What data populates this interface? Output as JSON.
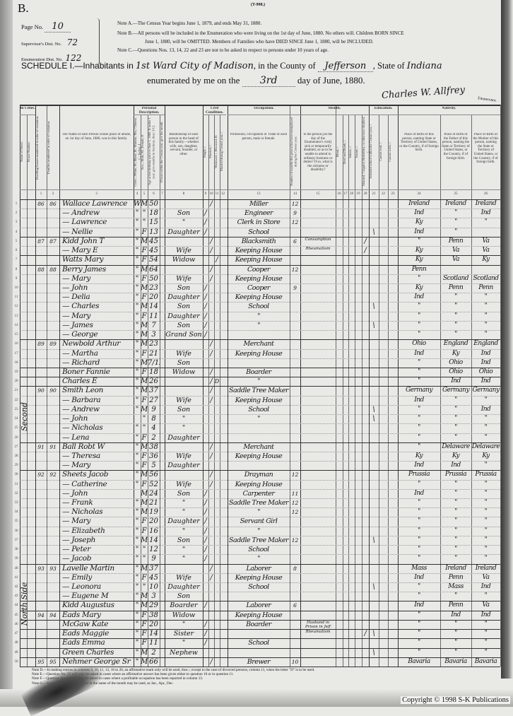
{
  "header": {
    "form_letter": "B.",
    "form_code": "(T-998.)",
    "page_label": "Page No.",
    "page_no": "10",
    "supervisor_label": "Supervisor's Dist. No.",
    "supervisor_no": "72",
    "enumeration_label": "Enumeration Dist. No.",
    "enumeration_no": "122",
    "note_a": "Note A.—The Census Year begins June 1, 1879, and ends May 31, 1880.",
    "note_b1": "Note B.—All persons will be included in the Enumeration who were living on the 1st day of June, 1880. No others will. Children BORN SINCE",
    "note_b2": "June 1, 1880, will be OMITTED. Members of Families who have DIED SINCE June 1, 1880, will be INCLUDED.",
    "note_c": "Note C.—Questions Nos. 13, 14, 22 and 23 are not to be asked in respect to persons under 10 years of age.",
    "schedule_label": "SCHEDULE I.—Inhabitants in",
    "place": "1st Ward City of Madison",
    "county_label": ", in the County of",
    "county": "Jefferson",
    "state_label": ", State of",
    "state": "Indiana",
    "enumerated_label": "enumerated by me on the",
    "day": "3rd",
    "day_suffix": "day of June, 1880.",
    "enumerator_signature": "Charles W. Allfrey",
    "enumerator_label": "Enumerator."
  },
  "columns": {
    "in_cities": "In Cities.",
    "street": "Name of Street.",
    "house": "House Number.",
    "dwelling": "Dwelling houses numbered in order of visitation.",
    "family": "Families numbered in order of visitation.",
    "name": "The Name of each Person whose place of abode, on 1st day of June, 1880, was in this family.",
    "personal": "Personal Description.",
    "color": "Color—White, W.; Black, B.; Mulatto, Mu.; Chinese, C.; Indian, I.",
    "sex": "Sex—Male, M.; Female, F.",
    "age": "Age at last birthday prior to June 1, 1880. If under 1 year, give months in fractions, thus: 3/12.",
    "month": "If born within the Census year, give the month.",
    "relationship": "Relationship of each person to the head of this family—whether wife, son, daughter, servant, boarder, or other.",
    "civil": "Civil Condition.",
    "single": "Single, /.",
    "married": "Married, /.",
    "widowed": "Widowed, /. Divorced, D.",
    "married_year": "Married during Census year, /.",
    "occupation_group": "Occupation.",
    "occupation": "Profession, Occupation or Trade of each person, male or female.",
    "unemployed": "Number of months this person has been unemployed during the Census year.",
    "health_group": "Health.",
    "sickness": "Is the person [on the day of the Enumerator's visit] sick or temporarily disabled, so as to be unable to attend to ordinary business or duties? If so, what is the sickness or disability?",
    "blind": "Blind, /.",
    "deaf": "Deaf and Dumb, /.",
    "idiotic": "Idiotic, /.",
    "insane": "Insane, /.",
    "maimed": "Maimed, Crippled, Bedridden, or otherwise disabled, /.",
    "education_group": "Education.",
    "school": "Attended school within the Census year, /.",
    "cannot_read": "Cannot read, /.",
    "cannot_write": "Cannot write, /.",
    "nativity_group": "Nativity.",
    "birthplace": "Place of Birth of this person, naming State or Territory of United States, or the Country, if of foreign birth.",
    "father_birth": "Place of Birth of the Father of this person, naming the State or Territory of United States, or the Country, if of foreign birth.",
    "mother_birth": "Place of Birth of the Mother of this person, naming the State or Territory of United States, or the Country, if of foreign birth.",
    "numbers": [
      "1",
      "2",
      "3",
      "4",
      "5",
      "6",
      "7",
      "8",
      "9",
      "10",
      "11",
      "12",
      "13",
      "14",
      "15",
      "16",
      "17",
      "18",
      "19",
      "20",
      "21",
      "22",
      "23",
      "24",
      "25",
      "26"
    ]
  },
  "street_annotations": [
    "Second",
    "North Side"
  ],
  "rows": [
    [
      "86",
      "86",
      "Wallace Lawrence",
      "W",
      "M",
      "50",
      "",
      "10",
      "Miller",
      "12",
      "",
      "",
      "",
      "Ireland",
      "Ireland",
      "Ireland"
    ],
    [
      "",
      "",
      "— Andrew",
      "\"",
      "\"",
      "18",
      "Son",
      "9",
      "Engineer",
      "9",
      "",
      "",
      "",
      "Ind",
      "\"",
      "Ind"
    ],
    [
      "",
      "",
      "— Lawrence",
      "\"",
      "\"",
      "15",
      "\"",
      "9",
      "Clerk in Store",
      "12",
      "",
      "",
      "",
      "Ky",
      "\"",
      "\""
    ],
    [
      "",
      "",
      "— Nellie",
      "\"",
      "F",
      "13",
      "Daughter",
      "9",
      "School",
      "",
      "",
      "",
      "\\",
      "Ind",
      "\"",
      ""
    ],
    [
      "87",
      "87",
      "Kidd John T",
      "\"",
      "M",
      "45",
      "",
      "10",
      "Blacksmith",
      "6",
      "Consumption",
      "/",
      "",
      "\"",
      "Penn",
      "Va"
    ],
    [
      "",
      "",
      "— Mary E",
      "\"",
      "F",
      "45",
      "Wife",
      "10",
      "Keeping House",
      "",
      "Rheumatism",
      "/",
      "",
      "Ky",
      "Va",
      "Va"
    ],
    [
      "",
      "",
      "Watts Mary",
      "\"",
      "F",
      "54",
      "Widow",
      "11",
      "Keeping House",
      "",
      "",
      "",
      "",
      "Ky",
      "Va",
      "Ky"
    ],
    [
      "88",
      "88",
      "Berry James",
      "\"",
      "M",
      "64",
      "",
      "10",
      "Cooper",
      "12",
      "",
      "",
      "",
      "Penn",
      "",
      ""
    ],
    [
      "",
      "",
      "— Mary",
      "\"",
      "F",
      "50",
      "Wife",
      "10",
      "Keeping House",
      "",
      "",
      "",
      "",
      "\"",
      "Scotland",
      "Scotland"
    ],
    [
      "",
      "",
      "— John",
      "\"",
      "M",
      "23",
      "Son",
      "9",
      "Cooper",
      "9",
      "",
      "",
      "",
      "Ky",
      "Penn",
      "Penn"
    ],
    [
      "",
      "",
      "— Delia",
      "\"",
      "F",
      "20",
      "Daughter",
      "9",
      "Keeping House",
      "",
      "",
      "",
      "",
      "Ind",
      "\"",
      "\""
    ],
    [
      "",
      "",
      "— Charles",
      "\"",
      "M",
      "14",
      "Son",
      "9",
      "School",
      "",
      "",
      "",
      "\\",
      "\"",
      "\"",
      "\""
    ],
    [
      "",
      "",
      "— Mary",
      "\"",
      "F",
      "11",
      "Daughter",
      "9",
      "\"",
      "",
      "",
      "",
      "",
      "\"",
      "\"",
      "\""
    ],
    [
      "",
      "",
      "— James",
      "\"",
      "M",
      "7",
      "Son",
      "9",
      "\"",
      "",
      "",
      "",
      "\\",
      "\"",
      "\"",
      "\""
    ],
    [
      "",
      "",
      "— George",
      "\"",
      "M",
      "3",
      "Grand Son",
      "9",
      "",
      "",
      "",
      "",
      "",
      "\"",
      "\"",
      "\""
    ],
    [
      "89",
      "89",
      "Newbold Arthur",
      "\"",
      "M",
      "23",
      "",
      "10",
      "Merchant",
      "",
      "",
      "",
      "",
      "Ohio",
      "England",
      "England"
    ],
    [
      "",
      "",
      "— Martha",
      "\"",
      "F",
      "21",
      "Wife",
      "10",
      "Keeping House",
      "",
      "",
      "",
      "",
      "Ind",
      "Ky",
      "Ind"
    ],
    [
      "",
      "",
      "— Richard",
      "\"",
      "M",
      "7/12",
      "Son",
      "",
      "",
      "",
      "",
      "",
      "",
      "\"",
      "Ohio",
      "Ind"
    ],
    [
      "",
      "",
      "Boner Fannie",
      "\"",
      "F",
      "18",
      "Widow",
      "10",
      "Boarder",
      "",
      "",
      "",
      "",
      "\"",
      "Ohio",
      "Ohio"
    ],
    [
      "",
      "",
      "Charles E",
      "\"",
      "M",
      "26",
      "",
      "10D",
      "\"",
      "",
      "",
      "",
      "",
      "\"",
      "Ind",
      "Ind"
    ],
    [
      "90",
      "90",
      "Smith Leon",
      "\"",
      "M",
      "37",
      "",
      "10",
      "Saddle Tree Maker",
      "",
      "",
      "",
      "",
      "Germany",
      "Germany",
      "Germany"
    ],
    [
      "",
      "",
      "— Barbara",
      "\"",
      "F",
      "27",
      "Wife",
      "10",
      "Keeping House",
      "",
      "",
      "",
      "",
      "Ind",
      "\"",
      "\""
    ],
    [
      "",
      "",
      "— Andrew",
      "\"",
      "M",
      "9",
      "Son",
      "",
      "School",
      "",
      "",
      "",
      "\\",
      "\"",
      "\"",
      "Ind"
    ],
    [
      "",
      "",
      "— John",
      "",
      "\"",
      "8",
      "\"",
      "",
      "\"",
      "",
      "",
      "",
      "\\",
      "\"",
      "\"",
      "\""
    ],
    [
      "",
      "",
      "— Nicholas",
      "\"",
      "\"",
      "4",
      "\"",
      "",
      "",
      "",
      "",
      "",
      "",
      "\"",
      "\"",
      "\""
    ],
    [
      "",
      "",
      "— Lena",
      "\"",
      "F",
      "2",
      "Daughter",
      "",
      "",
      "",
      "",
      "",
      "",
      "\"",
      "\"",
      "\""
    ],
    [
      "91",
      "91",
      "Ball Robt W",
      "\"",
      "M",
      "38",
      "",
      "10",
      "Merchant",
      "",
      "",
      "",
      "",
      "\"",
      "Delaware",
      "Delaware"
    ],
    [
      "",
      "",
      "— Theresa",
      "\"",
      "F",
      "36",
      "Wife",
      "10",
      "Keeping House",
      "",
      "",
      "",
      "",
      "Ky",
      "Ky",
      "Ky"
    ],
    [
      "",
      "",
      "— Mary",
      "\"",
      "F",
      "5",
      "Daughter",
      "",
      "",
      "",
      "",
      "",
      "",
      "Ind",
      "Ind",
      "\""
    ],
    [
      "92",
      "92",
      "Sheets Jacob",
      "\"",
      "M",
      "56",
      "",
      "10",
      "Drayman",
      "12",
      "",
      "",
      "",
      "Prussia",
      "Prussia",
      "Prussia"
    ],
    [
      "",
      "",
      "— Catherine",
      "\"",
      "F",
      "52",
      "Wife",
      "10",
      "Keeping House",
      "",
      "",
      "",
      "",
      "\"",
      "\"",
      "\""
    ],
    [
      "",
      "",
      "— John",
      "",
      "M",
      "24",
      "Son",
      "9",
      "Carpenter",
      "11",
      "",
      "",
      "",
      "Ind",
      "\"",
      "\""
    ],
    [
      "",
      "",
      "— Frank",
      "\"",
      "M",
      "21",
      "\"",
      "9",
      "Saddle Tree Maker",
      "12",
      "",
      "",
      "",
      "\"",
      "\"",
      "\""
    ],
    [
      "",
      "",
      "— Nicholas",
      "\"",
      "M",
      "19",
      "\"",
      "9",
      "\"",
      "12",
      "",
      "",
      "",
      "\"",
      "\"",
      "\""
    ],
    [
      "",
      "",
      "— Mary",
      "\"",
      "F",
      "20",
      "Daughter",
      "9",
      "Servant Girl",
      "",
      "",
      "",
      "",
      "\"",
      "\"",
      "\""
    ],
    [
      "",
      "",
      "— Elizabeth",
      "\"",
      "F",
      "16",
      "\"",
      "9",
      "\"",
      "",
      "",
      "",
      "",
      "\"",
      "\"",
      "\""
    ],
    [
      "",
      "",
      "— Joseph",
      "\"",
      "M",
      "14",
      "Son",
      "9",
      "Saddle Tree Maker",
      "12",
      "",
      "",
      "\\",
      "\"",
      "\"",
      "\""
    ],
    [
      "",
      "",
      "— Peter",
      "\"",
      "\"",
      "12",
      "\"",
      "9",
      "School",
      "",
      "",
      "",
      "",
      "\"",
      "\"",
      "\""
    ],
    [
      "",
      "",
      "— Jacob",
      "\"",
      "\"",
      "9",
      "\"",
      "9",
      "\"",
      "",
      "",
      "",
      "",
      "\"",
      "\"",
      "\""
    ],
    [
      "93",
      "93",
      "Lavelle Martin",
      "\"",
      "M",
      "37",
      "",
      "10",
      "Laborer",
      "8",
      "",
      "",
      "",
      "Mass",
      "Ireland",
      "Ireland"
    ],
    [
      "",
      "",
      "— Emily",
      "\"",
      "F",
      "45",
      "Wife",
      "10",
      "Keeping House",
      "",
      "",
      "",
      "",
      "Ind",
      "Penn",
      "Va"
    ],
    [
      "",
      "",
      "— Leonora",
      "\"",
      "\"",
      "10",
      "Daughter",
      "",
      "School",
      "",
      "",
      "",
      "\\",
      "\"",
      "Mass",
      "Ind"
    ],
    [
      "",
      "",
      "— Eugene M",
      "\"",
      "M",
      "3",
      "Son",
      "",
      "",
      "",
      "",
      "",
      "",
      "\"",
      "\"",
      "\""
    ],
    [
      "",
      "",
      "Kidd Augustus",
      "\"",
      "M",
      "29",
      "Boarder",
      "9",
      "Laborer",
      "6",
      "",
      "",
      "",
      "Ind",
      "Penn",
      "Va"
    ],
    [
      "94",
      "94",
      "Eads Mary",
      "\"",
      "F",
      "38",
      "Widow",
      "",
      "Keeping House",
      "",
      "",
      "",
      "",
      "\"",
      "Ind",
      "Ind"
    ],
    [
      "",
      "",
      "McGaw Kate",
      "\"",
      "F",
      "20",
      "\"",
      "9",
      "Boarder",
      "",
      "Husband in Prison in Jeff",
      "",
      "",
      "\"",
      "\"",
      "\""
    ],
    [
      "",
      "",
      "Eads Maggie",
      "\"",
      "F",
      "14",
      "Sister",
      "9",
      "",
      "",
      "Rheumatism",
      "/",
      "\\",
      "\"",
      "\"",
      "\""
    ],
    [
      "",
      "",
      "Eads Emma",
      "\"",
      "F",
      "11",
      "\"",
      "9",
      "School",
      "",
      "",
      "",
      "",
      "\"",
      "\"",
      "\""
    ],
    [
      "",
      "",
      "Green Charles",
      "\"",
      "M",
      "2",
      "Nephew",
      "",
      "",
      "",
      "",
      "",
      "\\",
      "\"",
      "\"",
      "\""
    ],
    [
      "95",
      "95",
      "Nehmer George Sr",
      "\"",
      "M",
      "66",
      "",
      "10",
      "Brewer",
      "10",
      "",
      "",
      "",
      "Bavaria",
      "Bavaria",
      "Bavaria"
    ]
  ],
  "footer": {
    "note_d": "Note D.—In making entries in columns 9, 10, 11, 12, 16 to 20, an affirmative mark only will be used, thus /, except in the case of divorced persons, column 11, when the letter \"D\" is to be used.",
    "note_e": "Note E.—Question No. 22 will only be asked in cases where an affirmative answer has been given either to question 10 or to question 11.",
    "note_f": "Note F.—Question No. 14 will only be asked in cases where a profitable occupation has been reported in column 13.",
    "note_g": "Note G.—In column 7 an abbreviation in the name of the month may be used, as Jan., Apr., Dec.",
    "copyright": "Copyright © 1998 S-K Publications"
  }
}
